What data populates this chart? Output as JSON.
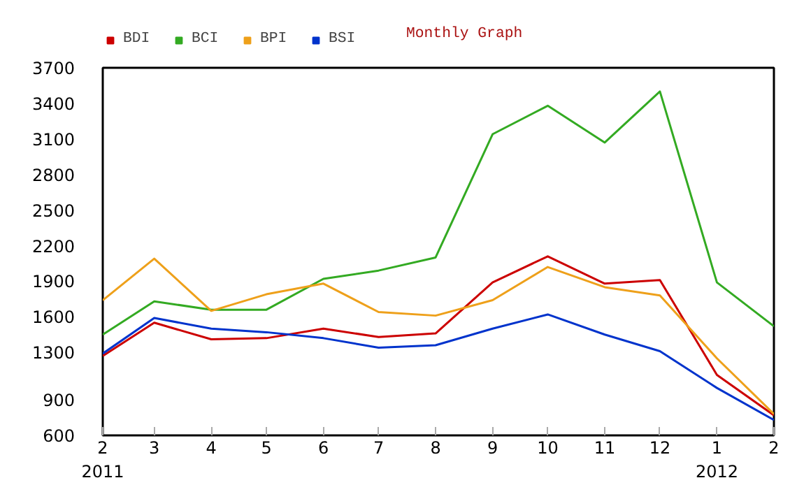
{
  "chart_data": {
    "type": "line",
    "title": "Monthly Graph",
    "x": [
      "2011-02",
      "2011-03",
      "2011-04",
      "2011-05",
      "2011-06",
      "2011-07",
      "2011-08",
      "2011-09",
      "2011-10",
      "2011-11",
      "2011-12",
      "2012-01",
      "2012-02"
    ],
    "series": [
      {
        "name": "BDI",
        "color": "#cc0000",
        "values": [
          1270,
          1550,
          1410,
          1420,
          1500,
          1430,
          1460,
          1890,
          2110,
          1880,
          1910,
          1110,
          770
        ]
      },
      {
        "name": "BCI",
        "color": "#33aa22",
        "values": [
          1450,
          1730,
          1660,
          1660,
          1920,
          1990,
          2100,
          3140,
          3380,
          3070,
          3500,
          1890,
          1520
        ]
      },
      {
        "name": "BPI",
        "color": "#eea01a",
        "values": [
          1740,
          2090,
          1650,
          1790,
          1880,
          1640,
          1610,
          1740,
          2020,
          1850,
          1780,
          1250,
          780
        ]
      },
      {
        "name": "BSI",
        "color": "#0033cc",
        "values": [
          1290,
          1590,
          1500,
          1470,
          1420,
          1340,
          1360,
          1500,
          1620,
          1450,
          1310,
          1000,
          730
        ]
      }
    ],
    "ylim": [
      600,
      3700
    ],
    "yticks": [
      600,
      900,
      1300,
      1600,
      1900,
      2200,
      2500,
      2800,
      3100,
      3400,
      3700
    ],
    "xlim": [
      "2011-02",
      "2012-02"
    ],
    "xticks": [
      {
        "value": "2011-02",
        "label": "2\n2011"
      },
      {
        "value": "2011-03",
        "label": "3"
      },
      {
        "value": "2011-04",
        "label": "4"
      },
      {
        "value": "2011-05",
        "label": "5"
      },
      {
        "value": "2011-06",
        "label": "6"
      },
      {
        "value": "2011-07",
        "label": "7"
      },
      {
        "value": "2011-08",
        "label": "8"
      },
      {
        "value": "2011-09",
        "label": "9"
      },
      {
        "value": "2011-10",
        "label": "10"
      },
      {
        "value": "2011-11",
        "label": "11"
      },
      {
        "value": "2011-12",
        "label": "12"
      },
      {
        "value": "2012-01",
        "label": "1\n2012"
      },
      {
        "value": "2012-02",
        "label": "2"
      }
    ],
    "legend": "top left",
    "grid": false,
    "marker": "none",
    "line_style": "solid"
  }
}
